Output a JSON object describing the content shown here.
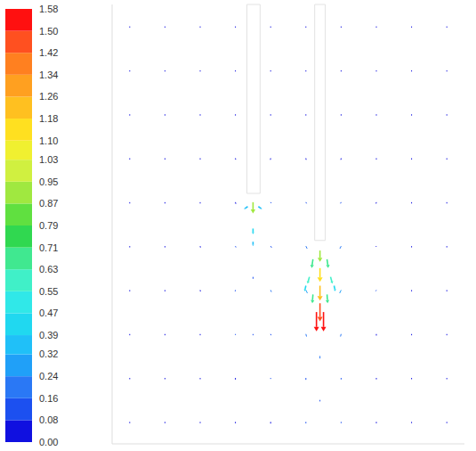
{
  "chart_data": {
    "type": "vector_field",
    "xlim": [
      0,
      100
    ],
    "ylim": [
      0,
      100
    ],
    "tick_labels": false,
    "obstacles": [
      {
        "x": [
          38.25,
          42
        ],
        "y": [
          57,
          100
        ]
      },
      {
        "x": [
          57.5,
          60.5
        ],
        "y": [
          46.3,
          100
        ]
      }
    ],
    "vectors": [
      [
        5,
        95,
        0,
        -0.02
      ],
      [
        15,
        95,
        0,
        -0.02
      ],
      [
        25,
        95,
        0,
        -0.02
      ],
      [
        35,
        95,
        0,
        -0.02
      ],
      [
        45,
        95,
        0,
        -0.02
      ],
      [
        55,
        95,
        0,
        -0.02
      ],
      [
        65,
        95,
        0,
        -0.02
      ],
      [
        75,
        95,
        0,
        -0.02
      ],
      [
        85,
        95,
        0,
        -0.02
      ],
      [
        95,
        95,
        0,
        -0.02
      ],
      [
        5,
        85,
        0,
        -0.02
      ],
      [
        15,
        85,
        0,
        -0.02
      ],
      [
        25,
        85,
        0,
        -0.02
      ],
      [
        35,
        85,
        0,
        -0.02
      ],
      [
        45,
        85,
        0,
        -0.02
      ],
      [
        55,
        85,
        0,
        -0.02
      ],
      [
        65,
        85,
        0,
        -0.02
      ],
      [
        75,
        85,
        0,
        -0.02
      ],
      [
        85,
        85,
        0,
        -0.02
      ],
      [
        95,
        85,
        0,
        -0.02
      ],
      [
        5,
        75,
        0,
        -0.03
      ],
      [
        15,
        75,
        0,
        -0.03
      ],
      [
        25,
        75,
        0,
        -0.03
      ],
      [
        35,
        75,
        0,
        -0.03
      ],
      [
        45,
        75,
        0,
        -0.03
      ],
      [
        55,
        75,
        0,
        -0.03
      ],
      [
        65,
        75,
        0,
        -0.03
      ],
      [
        75,
        75,
        0,
        -0.03
      ],
      [
        85,
        75,
        0,
        -0.03
      ],
      [
        95,
        75,
        0,
        -0.03
      ],
      [
        5,
        65,
        0,
        -0.03
      ],
      [
        15,
        65,
        0,
        -0.03
      ],
      [
        25,
        65,
        0,
        -0.03
      ],
      [
        35,
        65,
        0.02,
        -0.04
      ],
      [
        45,
        65,
        -0.02,
        -0.05
      ],
      [
        55,
        65,
        0.02,
        -0.05
      ],
      [
        65,
        65,
        -0.02,
        -0.05
      ],
      [
        75,
        65,
        0,
        -0.03
      ],
      [
        85,
        65,
        0,
        -0.03
      ],
      [
        95,
        65,
        0,
        -0.03
      ],
      [
        5,
        55,
        0,
        -0.03
      ],
      [
        15,
        55,
        0,
        -0.03
      ],
      [
        25,
        55,
        0,
        -0.03
      ],
      [
        35,
        55,
        0.03,
        -0.06
      ],
      [
        45,
        55,
        0.05,
        -0.08
      ],
      [
        55,
        55,
        0.05,
        -0.1
      ],
      [
        65,
        55,
        -0.05,
        -0.1
      ],
      [
        75,
        55,
        -0.02,
        -0.04
      ],
      [
        85,
        55,
        0,
        -0.03
      ],
      [
        95,
        55,
        0,
        -0.03
      ],
      [
        5,
        45,
        0,
        -0.03
      ],
      [
        15,
        45,
        0,
        -0.03
      ],
      [
        25,
        45,
        0.02,
        -0.04
      ],
      [
        35,
        45,
        0.04,
        -0.1
      ],
      [
        45,
        45,
        0.08,
        -0.12
      ],
      [
        55,
        45,
        0.1,
        -0.2
      ],
      [
        65,
        45,
        -0.1,
        -0.2
      ],
      [
        75,
        45,
        -0.04,
        -0.06
      ],
      [
        85,
        45,
        0,
        -0.03
      ],
      [
        95,
        45,
        0,
        -0.03
      ],
      [
        5,
        35,
        0,
        -0.03
      ],
      [
        15,
        35,
        0,
        -0.03
      ],
      [
        25,
        35,
        0.02,
        -0.04
      ],
      [
        35,
        35,
        -0.02,
        -0.1
      ],
      [
        45,
        35,
        0.06,
        -0.15
      ],
      [
        55,
        35,
        0.12,
        -0.25
      ],
      [
        65,
        35,
        -0.12,
        -0.25
      ],
      [
        75,
        35,
        -0.05,
        -0.08
      ],
      [
        85,
        35,
        0,
        -0.03
      ],
      [
        95,
        35,
        0,
        -0.03
      ],
      [
        5,
        25,
        0,
        -0.03
      ],
      [
        15,
        25,
        0,
        -0.03
      ],
      [
        25,
        25,
        0,
        -0.03
      ],
      [
        35,
        25,
        0,
        -0.08
      ],
      [
        45,
        25,
        0.03,
        -0.1
      ],
      [
        55,
        25,
        0.05,
        -0.2
      ],
      [
        65,
        25,
        -0.05,
        -0.2
      ],
      [
        75,
        25,
        0,
        -0.05
      ],
      [
        85,
        25,
        0,
        -0.03
      ],
      [
        95,
        25,
        0,
        -0.03
      ],
      [
        5,
        15,
        0,
        -0.03
      ],
      [
        15,
        15,
        0,
        -0.03
      ],
      [
        25,
        15,
        0,
        -0.03
      ],
      [
        35,
        15,
        0,
        -0.06
      ],
      [
        45,
        15,
        0,
        -0.08
      ],
      [
        55,
        15,
        0,
        -0.15
      ],
      [
        65,
        15,
        0,
        -0.12
      ],
      [
        75,
        15,
        0,
        -0.04
      ],
      [
        85,
        15,
        0,
        -0.03
      ],
      [
        95,
        15,
        0,
        -0.03
      ],
      [
        5,
        5,
        0,
        -0.03
      ],
      [
        15,
        5,
        0,
        -0.03
      ],
      [
        25,
        5,
        0,
        -0.03
      ],
      [
        35,
        5,
        0,
        -0.04
      ],
      [
        45,
        5,
        0,
        -0.06
      ],
      [
        55,
        5,
        0,
        -0.12
      ],
      [
        65,
        5,
        0,
        -0.1
      ],
      [
        75,
        5,
        0,
        -0.04
      ],
      [
        85,
        5,
        0,
        -0.03
      ],
      [
        95,
        5,
        0,
        -0.03
      ],
      [
        59,
        44,
        0,
        -0.9
      ],
      [
        57,
        42,
        -0.1,
        -0.7
      ],
      [
        61,
        42,
        0.1,
        -0.7
      ],
      [
        59,
        40,
        0,
        -1.1
      ],
      [
        56,
        38,
        -0.15,
        -0.55
      ],
      [
        62,
        38,
        0.15,
        -0.55
      ],
      [
        55,
        36,
        -0.1,
        -0.45
      ],
      [
        63,
        36,
        0.1,
        -0.45
      ],
      [
        59,
        36,
        0,
        -1.2
      ],
      [
        57,
        34,
        -0.05,
        -0.7
      ],
      [
        61,
        34,
        0.05,
        -0.7
      ],
      [
        59,
        32,
        0,
        -1.45
      ],
      [
        58,
        30,
        0,
        -1.55
      ],
      [
        60,
        30,
        0,
        -1.55
      ],
      [
        40,
        55,
        0,
        -0.9
      ],
      [
        38.5,
        54,
        -0.3,
        -0.2
      ],
      [
        41.5,
        54,
        0.3,
        -0.2
      ],
      [
        40,
        49,
        0,
        -0.45
      ],
      [
        40,
        46,
        0,
        -0.35
      ],
      [
        59,
        20,
        0,
        -0.2
      ],
      [
        59,
        10,
        0,
        -0.12
      ],
      [
        40,
        38,
        0,
        -0.15
      ],
      [
        40,
        25,
        0,
        -0.1
      ]
    ],
    "colorbar": {
      "range": [
        0,
        1.58
      ],
      "ticks": [
        {
          "value": 0,
          "label": "0.00"
        },
        0.08,
        0.16,
        0.24,
        0.32,
        0.39,
        0.47,
        0.55,
        0.63,
        0.71,
        0.79,
        0.87,
        0.95,
        1.03,
        {
          "value": 1.1,
          "label": "1.10"
        },
        1.18,
        1.26,
        1.34,
        1.42,
        {
          "value": 1.5,
          "label": "1.50"
        },
        1.58
      ],
      "colors": [
        "#1010e0",
        "#1c50f0",
        "#2a78f5",
        "#20a0f8",
        "#20c0f8",
        "#20d8f0",
        "#30e8e8",
        "#40f0c8",
        "#40e890",
        "#30d850",
        "#60e040",
        "#a0e840",
        "#d0f040",
        "#f0f030",
        "#ffe020",
        "#ffc020",
        "#ffa020",
        "#ff8020",
        "#ff5020",
        "#ff1010"
      ]
    }
  }
}
